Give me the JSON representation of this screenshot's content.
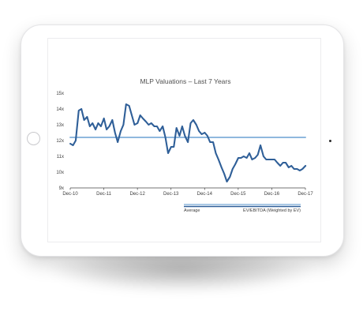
{
  "chart_data": {
    "type": "line",
    "title": "MLP Valuations – Last 7 Years",
    "xlabel": "",
    "ylabel": "",
    "x_tick_labels": [
      "Dec-10",
      "Dec-11",
      "Dec-12",
      "Dec-13",
      "Dec-14",
      "Dec-15",
      "Dec-16",
      "Dec-17"
    ],
    "y_tick_labels": [
      "9x",
      "10x",
      "11x",
      "12x",
      "13x",
      "14x",
      "15x"
    ],
    "ylim": [
      9,
      15
    ],
    "xlim": [
      2010.917,
      2017.917
    ],
    "grid": false,
    "legend_position": "bottom-right",
    "series": [
      {
        "name": "EV/EBITDA (Weighted by EV)",
        "color": "#2f5f98",
        "x": [
          2010.92,
          2011.0,
          2011.08,
          2011.17,
          2011.25,
          2011.33,
          2011.42,
          2011.5,
          2011.58,
          2011.67,
          2011.75,
          2011.83,
          2011.92,
          2012.0,
          2012.08,
          2012.17,
          2012.25,
          2012.33,
          2012.42,
          2012.5,
          2012.58,
          2012.67,
          2012.75,
          2012.83,
          2012.92,
          2013.0,
          2013.08,
          2013.17,
          2013.25,
          2013.33,
          2013.42,
          2013.5,
          2013.58,
          2013.67,
          2013.75,
          2013.83,
          2013.92,
          2014.0,
          2014.08,
          2014.17,
          2014.25,
          2014.33,
          2014.42,
          2014.5,
          2014.58,
          2014.67,
          2014.75,
          2014.83,
          2014.92,
          2015.0,
          2015.08,
          2015.17,
          2015.25,
          2015.33,
          2015.42,
          2015.5,
          2015.58,
          2015.67,
          2015.75,
          2015.83,
          2015.92,
          2016.0,
          2016.08,
          2016.17,
          2016.25,
          2016.33,
          2016.42,
          2016.5,
          2016.58,
          2016.67,
          2016.75,
          2016.83,
          2016.92,
          2017.0,
          2017.08,
          2017.17,
          2017.25,
          2017.33,
          2017.42,
          2017.5,
          2017.58,
          2017.67,
          2017.75,
          2017.83,
          2017.92
        ],
        "y": [
          11.8,
          11.7,
          12.0,
          13.9,
          14.0,
          13.3,
          13.5,
          12.9,
          13.1,
          12.7,
          13.1,
          12.9,
          13.4,
          12.7,
          12.9,
          13.3,
          12.5,
          11.9,
          12.6,
          13.0,
          14.3,
          14.2,
          13.6,
          13.0,
          13.1,
          13.6,
          13.4,
          13.2,
          13.0,
          13.1,
          12.9,
          12.9,
          12.6,
          12.9,
          12.2,
          11.2,
          11.6,
          11.6,
          12.8,
          12.3,
          12.9,
          12.3,
          11.9,
          13.1,
          13.3,
          13.0,
          12.6,
          12.4,
          12.5,
          12.3,
          11.9,
          11.9,
          11.2,
          10.8,
          10.3,
          9.9,
          9.4,
          9.7,
          10.2,
          10.5,
          10.9,
          10.9,
          11.0,
          10.9,
          11.2,
          10.8,
          10.9,
          11.1,
          11.7,
          11.0,
          10.8,
          10.8,
          10.8,
          10.8,
          10.6,
          10.4,
          10.6,
          10.6,
          10.3,
          10.4,
          10.2,
          10.2,
          10.1,
          10.2,
          10.4
        ]
      },
      {
        "name": "Average",
        "color": "#8fb8de",
        "x": [
          2010.917,
          2017.917
        ],
        "y": [
          12.2,
          12.2
        ]
      }
    ]
  }
}
